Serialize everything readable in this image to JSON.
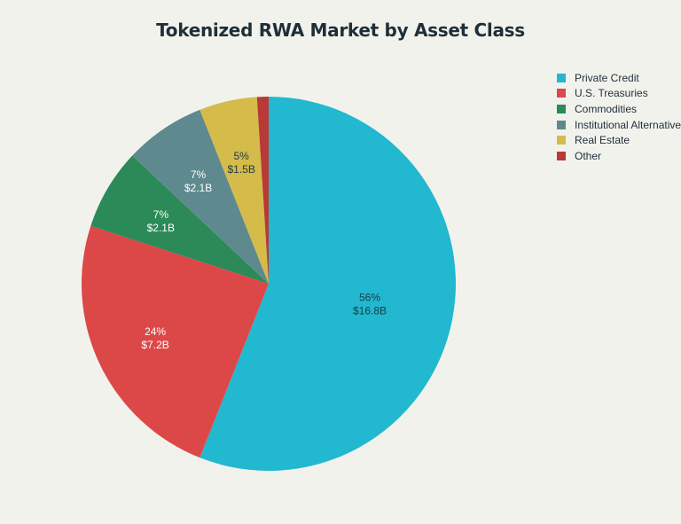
{
  "chart_data": {
    "type": "pie",
    "title": "Tokenized RWA Market by Asset Class",
    "legend_position": "top-right",
    "slices": [
      {
        "name": "Private Credit",
        "value": 16.8,
        "percent_label": "56%",
        "value_label": "$16.8B",
        "color": "#22b8cf",
        "label_color": "#1e3a44"
      },
      {
        "name": "U.S. Treasuries",
        "value": 7.2,
        "percent_label": "24%",
        "value_label": "$7.2B",
        "color": "#dc4848",
        "label_color": "#ffffff"
      },
      {
        "name": "Commodities",
        "value": 2.1,
        "percent_label": "7%",
        "value_label": "$2.1B",
        "color": "#2b8a57",
        "label_color": "#ffffff"
      },
      {
        "name": "Institutional Alternatives",
        "value": 2.1,
        "percent_label": "7%",
        "value_label": "$2.1B",
        "color": "#5e8a8f",
        "label_color": "#ffffff"
      },
      {
        "name": "Real Estate",
        "value": 1.5,
        "percent_label": "5%",
        "value_label": "$1.5B",
        "color": "#d4bb4a",
        "label_color": "#1e3a44"
      },
      {
        "name": "Other",
        "value": 0.3,
        "percent_label": "",
        "value_label": "",
        "color": "#b83a36",
        "label_color": "#ffffff"
      }
    ]
  }
}
